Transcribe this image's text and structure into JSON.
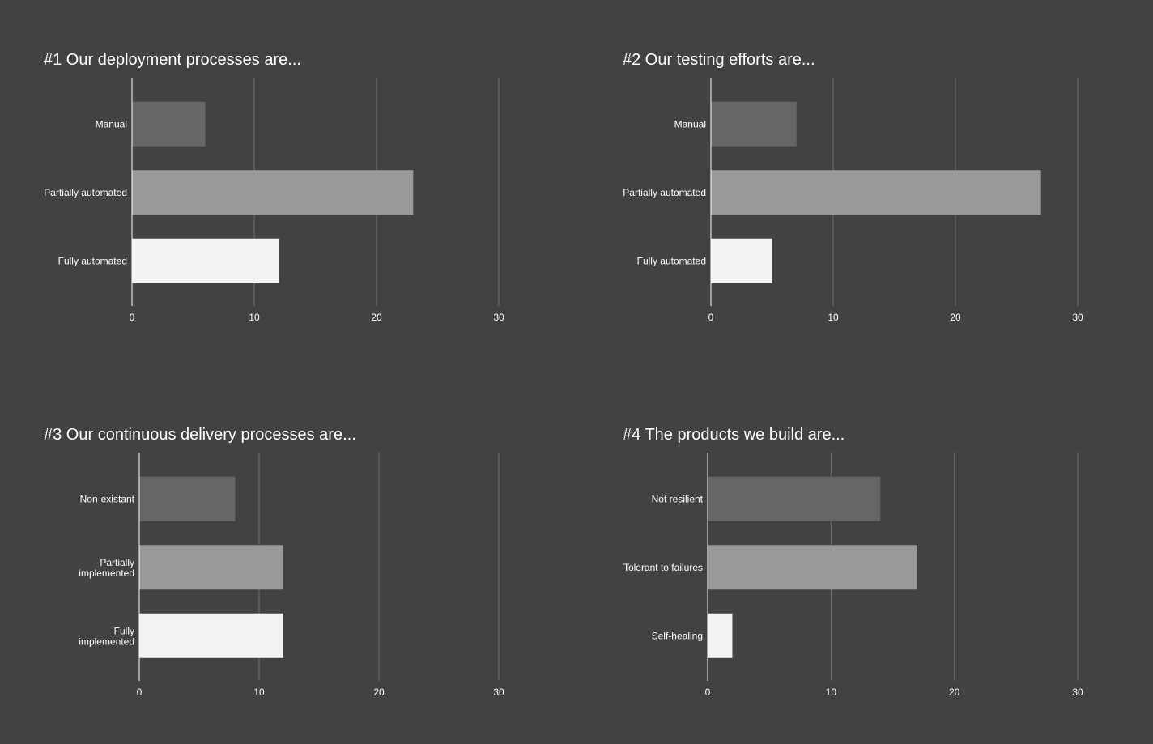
{
  "chart_data": [
    {
      "type": "bar",
      "orientation": "horizontal",
      "title": "#1 Our deployment processes are...",
      "categories": [
        "Manual",
        "Partially automated",
        "Fully automated"
      ],
      "values": [
        6,
        23,
        12
      ],
      "xlim": [
        0,
        30
      ],
      "xticks": [
        0,
        10,
        20,
        30
      ],
      "grid": true,
      "colors": [
        "#666666",
        "#999999",
        "#f3f3f3"
      ]
    },
    {
      "type": "bar",
      "orientation": "horizontal",
      "title": "#2 Our testing efforts are...",
      "categories": [
        "Manual",
        "Partially automated",
        "Fully automated"
      ],
      "values": [
        7,
        27,
        5
      ],
      "xlim": [
        0,
        30
      ],
      "xticks": [
        0,
        10,
        20,
        30
      ],
      "grid": true,
      "colors": [
        "#666666",
        "#999999",
        "#f3f3f3"
      ]
    },
    {
      "type": "bar",
      "orientation": "horizontal",
      "title": "#3 Our continuous delivery processes are...",
      "categories": [
        "Non-existant",
        "Partially implemented",
        "Fully implemented"
      ],
      "values": [
        8,
        12,
        12
      ],
      "xlim": [
        0,
        30
      ],
      "xticks": [
        0,
        10,
        20,
        30
      ],
      "grid": true,
      "colors": [
        "#666666",
        "#999999",
        "#f3f3f3"
      ]
    },
    {
      "type": "bar",
      "orientation": "horizontal",
      "title": "#4 The products we build are...",
      "categories": [
        "Not resilient",
        "Tolerant to failures",
        "Self-healing"
      ],
      "values": [
        14,
        17,
        2
      ],
      "xlim": [
        0,
        30
      ],
      "xticks": [
        0,
        10,
        20,
        30
      ],
      "grid": true,
      "colors": [
        "#666666",
        "#999999",
        "#f3f3f3"
      ]
    }
  ]
}
